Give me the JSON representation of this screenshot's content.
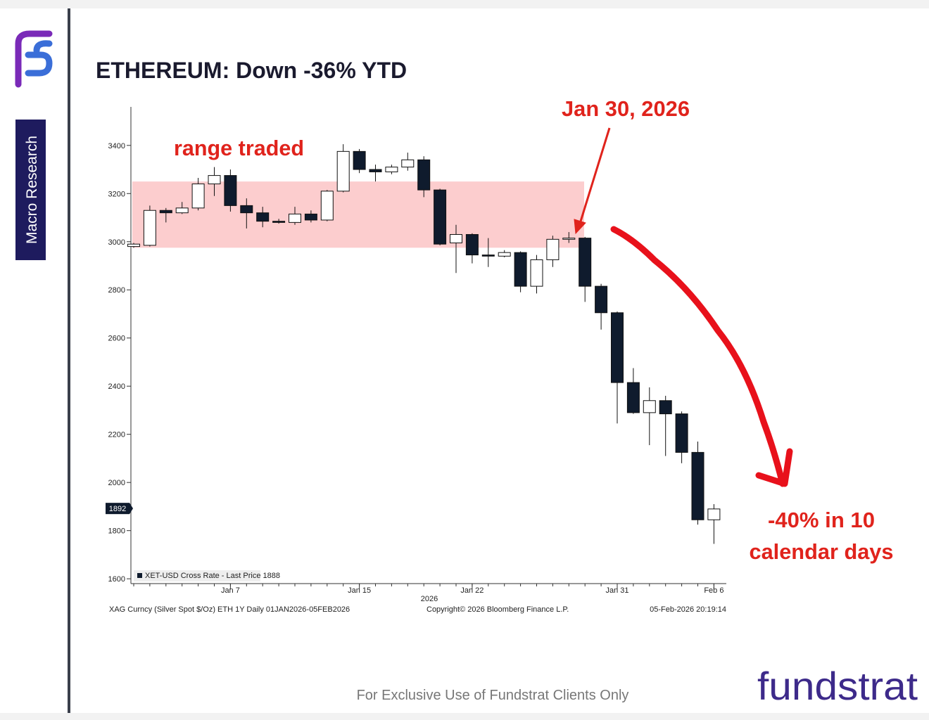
{
  "slide": {
    "side_label": "Macro Research",
    "footer": "For Exclusive Use of Fundstrat Clients Only",
    "brand": "fundstrat"
  },
  "chart_data": {
    "type": "candlestick",
    "title": "ETHEREUM: Down -36% YTD",
    "categories": [
      null,
      null,
      null,
      null,
      null,
      null,
      "Jan 7",
      null,
      null,
      null,
      null,
      null,
      null,
      null,
      "Jan 15",
      null,
      null,
      null,
      null,
      null,
      null,
      "Jan 22",
      null,
      null,
      null,
      null,
      null,
      null,
      null,
      null,
      "Jan 31",
      null,
      null,
      null,
      null,
      null,
      "Feb 6"
    ],
    "x_year_label": "2026",
    "series": [
      {
        "name": "XET-USD Cross Rate - Last Price 1888",
        "up_color": "#ffffff",
        "color": "#0f1b2d",
        "open": [
          2980,
          2985,
          3130,
          3120,
          3140,
          3240,
          3275,
          3150,
          3120,
          3085,
          3080,
          3115,
          3090,
          3210,
          3375,
          3300,
          3290,
          3310,
          3340,
          3215,
          2995,
          3030,
          2945,
          2940,
          2955,
          2815,
          2925,
          3010,
          3015,
          2815,
          2705,
          2415,
          2290,
          2340,
          2285,
          2125,
          1845
        ],
        "high": [
          2995,
          3150,
          3140,
          3165,
          3265,
          3310,
          3300,
          3180,
          3145,
          3095,
          3145,
          3130,
          3215,
          3405,
          3385,
          3320,
          3320,
          3370,
          3355,
          3220,
          3070,
          3035,
          3015,
          2965,
          2960,
          2945,
          3025,
          3040,
          3020,
          2825,
          2710,
          2475,
          2395,
          2360,
          2295,
          2170,
          1910
        ],
        "low": [
          2975,
          2980,
          3080,
          3115,
          3130,
          3190,
          3125,
          3055,
          3060,
          3075,
          3070,
          3080,
          3085,
          3205,
          3285,
          3250,
          3280,
          3295,
          3185,
          2985,
          2870,
          2910,
          2895,
          2935,
          2790,
          2785,
          2895,
          2995,
          2750,
          2635,
          2245,
          2285,
          2155,
          2110,
          2080,
          1825,
          1745
        ],
        "close": [
          2990,
          3130,
          3120,
          3140,
          3240,
          3275,
          3150,
          3120,
          3085,
          3080,
          3115,
          3090,
          3210,
          3375,
          3300,
          3290,
          3310,
          3340,
          3215,
          2990,
          3030,
          2945,
          2940,
          2955,
          2815,
          2925,
          3010,
          3015,
          2815,
          2705,
          2415,
          2290,
          2340,
          2285,
          2125,
          1845,
          1890
        ]
      }
    ],
    "last_price": 1892,
    "range_band": [
      2975,
      3250
    ],
    "ylim": [
      1580,
      3560
    ],
    "yticks": [
      1600,
      1800,
      2000,
      2200,
      2400,
      2600,
      2800,
      3000,
      3200,
      3400
    ],
    "annotations": [
      "range traded",
      "Jan 30, 2026",
      "-40% in 10",
      "calendar days"
    ],
    "source_left": "XAG Curncy (Silver Spot  $/Oz) ETH 1Y Daily 01JAN2026-05FEB2026",
    "source_center": "Copyright© 2026 Bloomberg Finance L.P.",
    "source_right": "05-Feb-2026 20:19:14"
  }
}
